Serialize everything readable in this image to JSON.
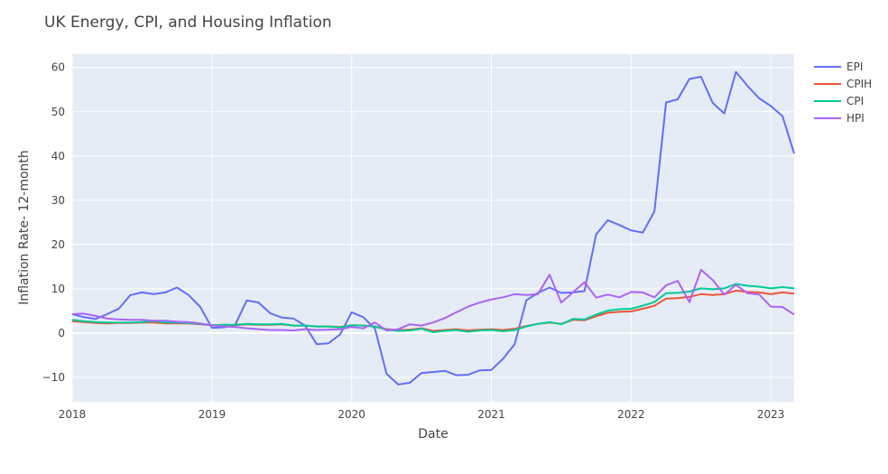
{
  "chart_data": {
    "type": "line",
    "title": "UK Energy, CPI, and Housing Inflation",
    "xlabel": "Date",
    "ylabel": "Inflation Rate- 12-month",
    "x_ticks": [
      "2018",
      "2019",
      "2020",
      "2021",
      "2022",
      "2023"
    ],
    "y_ticks": [
      -10,
      0,
      10,
      20,
      30,
      40,
      50,
      60
    ],
    "xlim": [
      "2018-01",
      "2023-03"
    ],
    "ylim": [
      -15.5,
      63
    ],
    "grid": true,
    "legend_position": "top-right",
    "x": [
      "2018-01",
      "2018-02",
      "2018-03",
      "2018-04",
      "2018-05",
      "2018-06",
      "2018-07",
      "2018-08",
      "2018-09",
      "2018-10",
      "2018-11",
      "2018-12",
      "2019-01",
      "2019-02",
      "2019-03",
      "2019-04",
      "2019-05",
      "2019-06",
      "2019-07",
      "2019-08",
      "2019-09",
      "2019-10",
      "2019-11",
      "2019-12",
      "2020-01",
      "2020-02",
      "2020-03",
      "2020-04",
      "2020-05",
      "2020-06",
      "2020-07",
      "2020-08",
      "2020-09",
      "2020-10",
      "2020-11",
      "2020-12",
      "2021-01",
      "2021-02",
      "2021-03",
      "2021-04",
      "2021-05",
      "2021-06",
      "2021-07",
      "2021-08",
      "2021-09",
      "2021-10",
      "2021-11",
      "2021-12",
      "2022-01",
      "2022-02",
      "2022-03",
      "2022-04",
      "2022-05",
      "2022-06",
      "2022-07",
      "2022-08",
      "2022-09",
      "2022-10",
      "2022-11",
      "2022-12",
      "2023-01",
      "2023-02",
      "2023-03"
    ],
    "series": [
      {
        "name": "EPI",
        "color": "#636efa",
        "values": [
          4.3,
          3.6,
          3.2,
          4.3,
          5.5,
          8.6,
          9.2,
          8.8,
          9.2,
          10.3,
          8.6,
          5.9,
          1.2,
          1.3,
          1.9,
          7.4,
          6.9,
          4.5,
          3.5,
          3.3,
          1.7,
          -2.5,
          -2.3,
          -0.3,
          4.7,
          3.6,
          1.0,
          -9.2,
          -11.6,
          -11.2,
          -9.0,
          -8.8,
          -8.5,
          -9.5,
          -9.4,
          -8.4,
          -8.3,
          -5.8,
          -2.5,
          7.4,
          9.1,
          10.3,
          9.1,
          9.2,
          9.5,
          22.3,
          25.5,
          24.4,
          23.2,
          22.7,
          27.5,
          52.1,
          52.8,
          57.4,
          57.9,
          52.0,
          49.6,
          59.0,
          55.8,
          53.0,
          51.3,
          49.0,
          40.6
        ]
      },
      {
        "name": "CPIH",
        "color": "#ef553b",
        "values": [
          2.7,
          2.5,
          2.3,
          2.2,
          2.3,
          2.3,
          2.4,
          2.4,
          2.2,
          2.2,
          2.2,
          2.0,
          1.8,
          1.9,
          1.8,
          2.0,
          1.9,
          1.9,
          2.0,
          1.7,
          1.7,
          1.5,
          1.5,
          1.4,
          1.8,
          1.7,
          1.5,
          0.9,
          0.7,
          0.8,
          1.1,
          0.5,
          0.7,
          0.9,
          0.6,
          0.8,
          0.9,
          0.7,
          1.0,
          1.6,
          2.1,
          2.4,
          2.1,
          3.0,
          2.9,
          3.8,
          4.6,
          4.8,
          4.9,
          5.5,
          6.2,
          7.8,
          7.9,
          8.2,
          8.8,
          8.6,
          8.8,
          9.6,
          9.3,
          9.2,
          8.8,
          9.2,
          8.9
        ]
      },
      {
        "name": "CPI",
        "color": "#00cc96",
        "values": [
          3.0,
          2.7,
          2.5,
          2.4,
          2.4,
          2.4,
          2.5,
          2.7,
          2.4,
          2.4,
          2.3,
          2.1,
          1.8,
          1.9,
          1.9,
          2.1,
          2.0,
          2.0,
          2.1,
          1.7,
          1.7,
          1.5,
          1.5,
          1.3,
          1.8,
          1.7,
          1.5,
          0.8,
          0.5,
          0.6,
          1.0,
          0.2,
          0.5,
          0.7,
          0.3,
          0.6,
          0.7,
          0.4,
          0.7,
          1.5,
          2.1,
          2.5,
          2.0,
          3.2,
          3.1,
          4.2,
          5.1,
          5.4,
          5.5,
          6.2,
          7.0,
          9.0,
          9.1,
          9.4,
          10.1,
          9.9,
          10.1,
          11.1,
          10.7,
          10.5,
          10.1,
          10.4,
          10.1
        ]
      },
      {
        "name": "HPI",
        "color": "#ab63fa",
        "values": [
          4.3,
          4.4,
          3.9,
          3.3,
          3.1,
          3.0,
          3.0,
          2.8,
          2.8,
          2.6,
          2.5,
          2.2,
          1.8,
          1.5,
          1.4,
          1.1,
          0.9,
          0.7,
          0.7,
          0.6,
          0.9,
          0.7,
          0.8,
          0.9,
          1.4,
          1.1,
          2.4,
          0.6,
          0.9,
          2.0,
          1.7,
          2.4,
          3.4,
          4.7,
          6.0,
          6.9,
          7.6,
          8.1,
          8.8,
          8.6,
          8.8,
          13.2,
          6.9,
          9.2,
          11.5,
          8.0,
          8.7,
          8.1,
          9.3,
          9.2,
          8.1,
          10.8,
          11.8,
          7.0,
          14.3,
          12.0,
          8.7,
          10.9,
          9.0,
          8.7,
          6.0,
          5.9,
          4.2
        ]
      }
    ]
  }
}
